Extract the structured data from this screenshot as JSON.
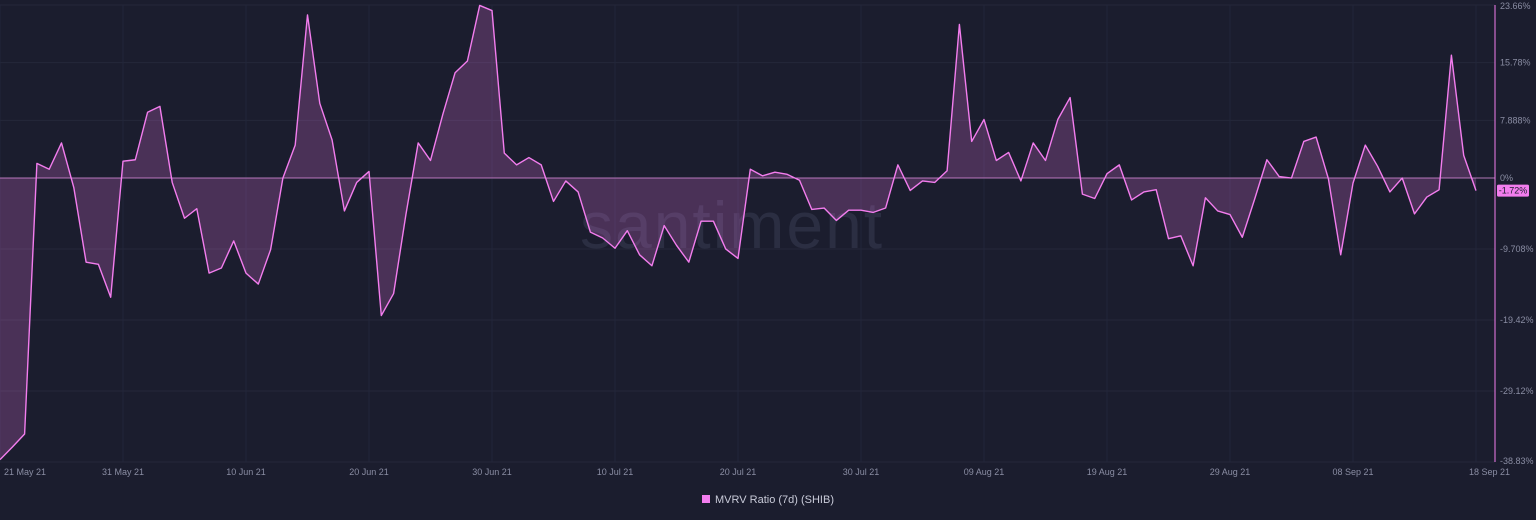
{
  "chart_data": {
    "type": "area",
    "watermark": "santiment",
    "legend": {
      "label": "MVRV Ratio (7d) (SHIB)",
      "placement": "bottom-center"
    },
    "series": [
      {
        "name": "MVRV Ratio (7d) (SHIB)",
        "color": "#f37dee",
        "current_value_label": "-1.72%"
      }
    ],
    "y_ticks": [
      "23.66%",
      "15.78%",
      "7.888%",
      "0%",
      "-9.708%",
      "-19.42%",
      "-29.12%",
      "-38.83%"
    ],
    "x_ticks": [
      "21 May 21",
      "31 May 21",
      "10 Jun 21",
      "20 Jun 21",
      "30 Jun 21",
      "10 Jul 21",
      "20 Jul 21",
      "30 Jul 21",
      "09 Aug 21",
      "19 Aug 21",
      "29 Aug 21",
      "08 Sep 21",
      "18 Sep 21"
    ],
    "ylim": [
      -38.83,
      23.66
    ],
    "x_start": "2021-05-21",
    "values": [
      -38.5,
      -36.8,
      -35,
      2,
      1.2,
      4.8,
      -1.3,
      -11.5,
      -11.8,
      -16.3,
      2.3,
      2.5,
      9,
      9.8,
      -0.6,
      -5.5,
      -4.2,
      -13,
      -12.3,
      -8.6,
      -13,
      -14.5,
      -9.8,
      0,
      4.5,
      22.3,
      10.2,
      5.2,
      -4.5,
      -0.6,
      0.9,
      -18.8,
      -15.8,
      -5,
      4.8,
      2.4,
      8.7,
      14.4,
      16,
      23.6,
      22.9,
      3.4,
      1.8,
      2.8,
      1.8,
      -3.2,
      -0.4,
      -1.9,
      -7.4,
      -8.2,
      -9.6,
      -7.2,
      -10.5,
      -12,
      -6.5,
      -9.2,
      -11.5,
      -5.9,
      -5.9,
      -9.7,
      -11,
      1.2,
      0.3,
      0.8,
      0.5,
      -0.3,
      -4.3,
      -4.1,
      -5.8,
      -4.4,
      -4.4,
      -4.7,
      -4.1,
      1.8,
      -1.7,
      -0.4,
      -0.6,
      1,
      21,
      5,
      8,
      2.4,
      3.5,
      -0.4,
      4.8,
      2.4,
      8,
      11,
      -2.2,
      -2.8,
      0.6,
      1.8,
      -3,
      -1.9,
      -1.6,
      -8.3,
      -7.9,
      -12,
      -2.7,
      -4.5,
      -5,
      -8.1,
      -2.9,
      2.5,
      0.2,
      0,
      5,
      5.6,
      -0.1,
      -10.5,
      -0.7,
      4.5,
      1.6,
      -1.9,
      0,
      -4.9,
      -2.6,
      -1.6,
      16.8,
      3.1,
      -1.72
    ]
  }
}
